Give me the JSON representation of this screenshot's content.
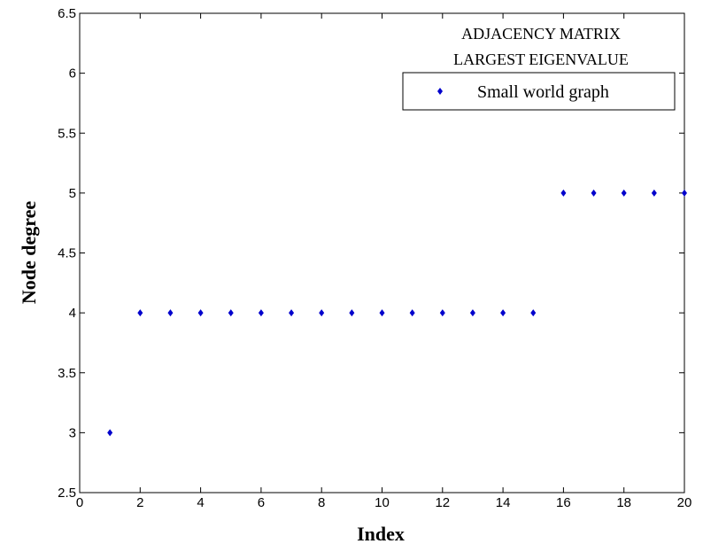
{
  "chart_data": {
    "type": "scatter",
    "xlabel": "Index",
    "ylabel": "Node degree",
    "xlim": [
      0,
      20
    ],
    "ylim": [
      2.5,
      6.5
    ],
    "x_ticks": [
      0,
      2,
      4,
      6,
      8,
      10,
      12,
      14,
      16,
      18,
      20
    ],
    "y_ticks": [
      2.5,
      3,
      3.5,
      4,
      4.5,
      5,
      5.5,
      6,
      6.5
    ],
    "grid": false,
    "legend_position": "top-right",
    "annotation_lines": [
      "ADJACENCY MATRIX",
      "LARGEST EIGENVALUE"
    ],
    "series": [
      {
        "name": "Small world graph",
        "color": "#0000cc",
        "marker": "diamond",
        "x": [
          1,
          2,
          3,
          4,
          5,
          6,
          7,
          8,
          9,
          10,
          11,
          12,
          13,
          14,
          15,
          16,
          17,
          18,
          19,
          20
        ],
        "y": [
          3,
          4,
          4,
          4,
          4,
          4,
          4,
          4,
          4,
          4,
          4,
          4,
          4,
          4,
          4,
          5,
          5,
          5,
          5,
          5
        ]
      }
    ]
  }
}
